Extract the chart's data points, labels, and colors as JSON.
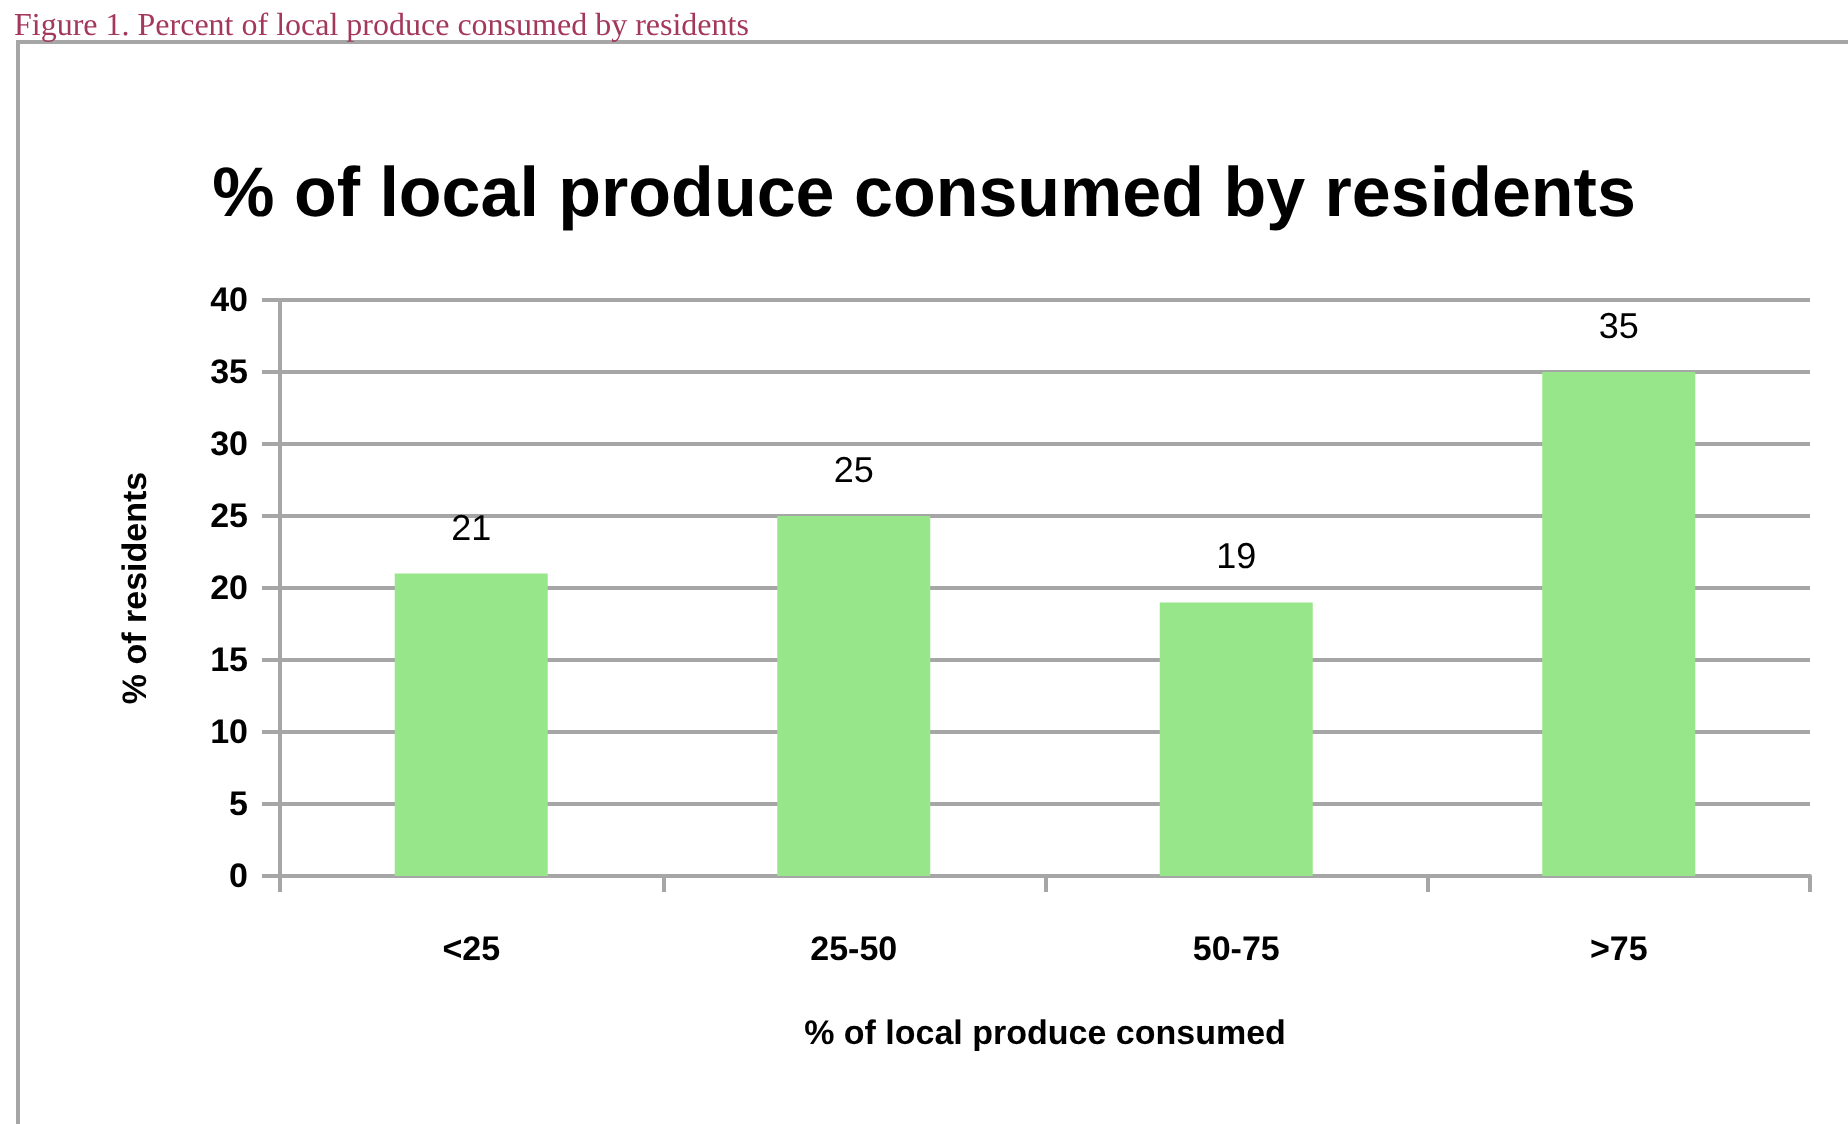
{
  "chart_data": {
    "type": "bar",
    "title": "% of local produce consumed by residents",
    "xlabel": "% of local produce consumed",
    "ylabel": "% of residents",
    "annotations": [
      "Figure 1. Percent of local produce consumed by residents"
    ],
    "categories": [
      "<25",
      "25-50",
      "50-75",
      ">75"
    ],
    "values": [
      21,
      25,
      19,
      35
    ],
    "color": "#98e68a",
    "ylim": [
      0,
      40
    ],
    "yticks": [
      0,
      5,
      10,
      15,
      20,
      25,
      30,
      35,
      40
    ],
    "grid": "y",
    "data_labels": true
  }
}
